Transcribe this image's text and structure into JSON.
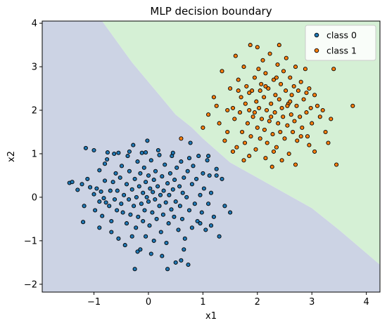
{
  "chart_data": {
    "type": "scatter",
    "title": "MLP decision boundary",
    "xlabel": "x1",
    "ylabel": "x2",
    "xlim": [
      -1.95,
      4.25
    ],
    "ylim": [
      -2.18,
      4.05
    ],
    "xticks": [
      -1,
      0,
      1,
      2,
      3,
      4
    ],
    "yticks": [
      -2,
      -1,
      0,
      1,
      2,
      3,
      4
    ],
    "grid": false,
    "legend_position": "top-right",
    "regions": [
      {
        "name": "class 0",
        "color": "#ccd3e4"
      },
      {
        "name": "class 1",
        "color": "#d5f0d5"
      }
    ],
    "decision_boundary": [
      [
        -0.85,
        4.05
      ],
      [
        -0.3,
        3.1
      ],
      [
        0.2,
        2.35
      ],
      [
        0.5,
        1.9
      ],
      [
        0.8,
        1.6
      ],
      [
        1.0,
        1.35
      ],
      [
        1.5,
        0.8
      ],
      [
        2.0,
        0.45
      ],
      [
        2.5,
        0.1
      ],
      [
        3.0,
        -0.25
      ],
      [
        3.5,
        -0.75
      ],
      [
        4.25,
        -1.55
      ]
    ],
    "series": [
      {
        "name": "class 0",
        "color": "#1f77b4",
        "points": [
          [
            -1.45,
            0.33
          ],
          [
            -1.4,
            0.35
          ],
          [
            -1.3,
            0.17
          ],
          [
            -1.22,
            0.3
          ],
          [
            -1.2,
            -0.57
          ],
          [
            -1.18,
            -0.2
          ],
          [
            -1.15,
            1.13
          ],
          [
            -1.12,
            0.42
          ],
          [
            -1.07,
            0.23
          ],
          [
            -1.0,
            0.07
          ],
          [
            -1.0,
            1.08
          ],
          [
            -0.98,
            -0.3
          ],
          [
            -0.95,
            0.2
          ],
          [
            -0.9,
            -0.1
          ],
          [
            -0.9,
            0.62
          ],
          [
            -0.87,
            0.13
          ],
          [
            -0.85,
            -0.43
          ],
          [
            -0.82,
            -0.02
          ],
          [
            -0.8,
            0.38
          ],
          [
            -0.8,
            0.77
          ],
          [
            -0.78,
            -0.12
          ],
          [
            -0.76,
            0.87
          ],
          [
            -0.72,
            -0.2
          ],
          [
            -0.7,
            0.15
          ],
          [
            -0.68,
            -0.55
          ],
          [
            -0.65,
            0.35
          ],
          [
            -0.63,
            1.0
          ],
          [
            -0.62,
            -0.05
          ],
          [
            -0.6,
            0.55
          ],
          [
            -0.58,
            -0.3
          ],
          [
            -0.57,
            0.15
          ],
          [
            -0.55,
            -0.95
          ],
          [
            -0.52,
            0.45
          ],
          [
            -0.5,
            -0.15
          ],
          [
            -0.49,
            0.72
          ],
          [
            -0.47,
            -0.35
          ],
          [
            -0.45,
            0.05
          ],
          [
            -0.43,
            -1.1
          ],
          [
            -0.4,
            0.3
          ],
          [
            -0.4,
            -0.6
          ],
          [
            -0.38,
            0.95
          ],
          [
            -0.36,
            -0.05
          ],
          [
            -0.35,
            0.6
          ],
          [
            -0.33,
            -0.4
          ],
          [
            -0.3,
            0.18
          ],
          [
            -0.3,
            -0.9
          ],
          [
            -0.28,
            1.2
          ],
          [
            -0.27,
            -0.2
          ],
          [
            -0.25,
            0.42
          ],
          [
            -0.23,
            -0.7
          ],
          [
            -0.22,
            0.0
          ],
          [
            -0.2,
            0.82
          ],
          [
            -0.19,
            -0.45
          ],
          [
            -0.17,
            0.25
          ],
          [
            -0.15,
            -1.2
          ],
          [
            -0.15,
            0.55
          ],
          [
            -0.13,
            -0.15
          ],
          [
            -0.12,
            1.02
          ],
          [
            -0.1,
            0.1
          ],
          [
            -0.1,
            -0.55
          ],
          [
            -0.08,
            0.68
          ],
          [
            -0.07,
            -0.3
          ],
          [
            -0.05,
            0.35
          ],
          [
            -0.05,
            -0.9
          ],
          [
            -0.03,
            0.0
          ],
          [
            -0.02,
            1.3
          ],
          [
            0.0,
            -0.1
          ],
          [
            0.0,
            0.5
          ],
          [
            0.02,
            -0.65
          ],
          [
            0.03,
            0.2
          ],
          [
            0.05,
            0.85
          ],
          [
            0.07,
            -0.35
          ],
          [
            0.08,
            0.12
          ],
          [
            0.1,
            -1.0
          ],
          [
            0.1,
            0.4
          ],
          [
            0.12,
            -0.05
          ],
          [
            0.13,
            0.6
          ],
          [
            0.15,
            -0.5
          ],
          [
            0.17,
            0.25
          ],
          [
            0.18,
            1.08
          ],
          [
            0.2,
            -0.2
          ],
          [
            0.22,
            0.05
          ],
          [
            0.23,
            -0.8
          ],
          [
            0.25,
            0.48
          ],
          [
            0.27,
            -0.4
          ],
          [
            0.28,
            0.15
          ],
          [
            0.3,
            0.75
          ],
          [
            0.32,
            -0.12
          ],
          [
            0.33,
            -1.05
          ],
          [
            0.35,
            0.32
          ],
          [
            0.37,
            -0.6
          ],
          [
            0.38,
            0.05
          ],
          [
            0.4,
            0.55
          ],
          [
            0.42,
            -0.28
          ],
          [
            0.43,
            0.95
          ],
          [
            0.45,
            0.18
          ],
          [
            0.47,
            -0.45
          ],
          [
            0.48,
            0.4
          ],
          [
            0.5,
            -0.1
          ],
          [
            0.5,
            -1.5
          ],
          [
            0.52,
            0.68
          ],
          [
            0.55,
            -0.75
          ],
          [
            0.57,
            0.25
          ],
          [
            0.58,
            -0.2
          ],
          [
            0.6,
            0.82
          ],
          [
            0.62,
            -0.5
          ],
          [
            0.63,
            0.1
          ],
          [
            0.65,
            0.45
          ],
          [
            0.67,
            -0.95
          ],
          [
            0.7,
            0.0
          ],
          [
            0.72,
            0.6
          ],
          [
            0.73,
            -1.55
          ],
          [
            0.75,
            -0.3
          ],
          [
            0.77,
            1.25
          ],
          [
            0.8,
            0.3
          ],
          [
            0.8,
            -0.7
          ],
          [
            0.82,
            0.72
          ],
          [
            0.85,
            -0.15
          ],
          [
            0.88,
            0.42
          ],
          [
            0.9,
            -0.55
          ],
          [
            0.92,
            0.95
          ],
          [
            0.95,
            0.05
          ],
          [
            0.98,
            -0.35
          ],
          [
            1.0,
            0.55
          ],
          [
            1.02,
            0.2
          ],
          [
            1.05,
            -0.75
          ],
          [
            1.08,
            0.85
          ],
          [
            1.1,
            -0.15
          ],
          [
            1.12,
            0.5
          ],
          [
            1.15,
            0.1
          ],
          [
            1.2,
            -0.45
          ],
          [
            1.25,
            0.65
          ],
          [
            1.3,
            -0.9
          ],
          [
            1.35,
            0.42
          ],
          [
            1.4,
            -0.2
          ],
          [
            1.5,
            -0.35
          ],
          [
            0.35,
            -1.65
          ],
          [
            -0.25,
            -1.65
          ],
          [
            0.6,
            -1.45
          ],
          [
            -0.75,
            1.03
          ],
          [
            -0.55,
            1.02
          ],
          [
            -0.35,
            1.05
          ],
          [
            -0.05,
            1.03
          ],
          [
            0.2,
            0.97
          ],
          [
            0.45,
            1.02
          ],
          [
            0.75,
            0.9
          ],
          [
            1.1,
            0.95
          ],
          [
            1.25,
            0.5
          ],
          [
            -0.9,
            -0.7
          ],
          [
            -0.68,
            -0.8
          ],
          [
            -0.2,
            -1.25
          ],
          [
            0.05,
            -1.3
          ],
          [
            0.25,
            -1.35
          ],
          [
            0.65,
            -1.2
          ],
          [
            0.95,
            -0.6
          ],
          [
            1.15,
            -0.65
          ]
        ]
      },
      {
        "name": "class 1",
        "color": "#ff7f0e",
        "points": [
          [
            0.6,
            1.35
          ],
          [
            1.0,
            1.6
          ],
          [
            1.1,
            1.9
          ],
          [
            1.2,
            2.3
          ],
          [
            1.25,
            2.1
          ],
          [
            1.3,
            1.7
          ],
          [
            1.35,
            2.9
          ],
          [
            1.4,
            1.3
          ],
          [
            1.45,
            1.5
          ],
          [
            1.5,
            2.5
          ],
          [
            1.55,
            2.05
          ],
          [
            1.58,
            1.8
          ],
          [
            1.6,
            3.25
          ],
          [
            1.62,
            1.15
          ],
          [
            1.65,
            2.7
          ],
          [
            1.68,
            1.95
          ],
          [
            1.7,
            2.3
          ],
          [
            1.72,
            1.5
          ],
          [
            1.75,
            3.0
          ],
          [
            1.77,
            1.25
          ],
          [
            1.78,
            2.15
          ],
          [
            1.8,
            2.55
          ],
          [
            1.82,
            1.7
          ],
          [
            1.85,
            2.0
          ],
          [
            1.87,
            3.5
          ],
          [
            1.88,
            1.4
          ],
          [
            1.9,
            2.45
          ],
          [
            1.92,
            1.85
          ],
          [
            1.95,
            2.75
          ],
          [
            1.97,
            1.1
          ],
          [
            1.98,
            2.2
          ],
          [
            2.0,
            1.6
          ],
          [
            2.02,
            2.95
          ],
          [
            2.03,
            2.05
          ],
          [
            2.05,
            1.35
          ],
          [
            2.07,
            2.6
          ],
          [
            2.08,
            1.8
          ],
          [
            2.1,
            3.15
          ],
          [
            2.12,
            2.3
          ],
          [
            2.13,
            1.55
          ],
          [
            2.15,
            2.85
          ],
          [
            2.17,
            2.0
          ],
          [
            2.18,
            1.25
          ],
          [
            2.2,
            2.5
          ],
          [
            2.22,
            1.75
          ],
          [
            2.23,
            3.3
          ],
          [
            2.25,
            2.15
          ],
          [
            2.27,
            0.7
          ],
          [
            2.28,
            1.45
          ],
          [
            2.3,
            2.7
          ],
          [
            2.32,
            1.95
          ],
          [
            2.33,
            2.35
          ],
          [
            2.35,
            1.15
          ],
          [
            2.37,
            3.05
          ],
          [
            2.38,
            1.7
          ],
          [
            2.4,
            2.25
          ],
          [
            2.42,
            1.5
          ],
          [
            2.43,
            2.6
          ],
          [
            2.45,
            2.05
          ],
          [
            2.47,
            1.85
          ],
          [
            2.48,
            2.9
          ],
          [
            2.5,
            1.35
          ],
          [
            2.52,
            2.45
          ],
          [
            2.53,
            3.2
          ],
          [
            2.55,
            1.65
          ],
          [
            2.57,
            2.15
          ],
          [
            2.58,
            1.0
          ],
          [
            2.6,
            2.75
          ],
          [
            2.62,
            1.9
          ],
          [
            2.63,
            2.35
          ],
          [
            2.65,
            1.5
          ],
          [
            2.67,
            2.55
          ],
          [
            2.68,
            1.75
          ],
          [
            2.7,
            3.0
          ],
          [
            2.72,
            2.1
          ],
          [
            2.73,
            1.3
          ],
          [
            2.75,
            2.45
          ],
          [
            2.78,
            1.85
          ],
          [
            2.8,
            2.65
          ],
          [
            2.82,
            1.6
          ],
          [
            2.85,
            2.25
          ],
          [
            2.88,
            2.95
          ],
          [
            2.9,
            1.95
          ],
          [
            2.92,
            1.4
          ],
          [
            2.95,
            2.5
          ],
          [
            2.98,
            2.05
          ],
          [
            3.0,
            1.7
          ],
          [
            3.05,
            2.35
          ],
          [
            3.1,
            2.1
          ],
          [
            3.15,
            1.85
          ],
          [
            3.2,
            2.0
          ],
          [
            3.25,
            1.5
          ],
          [
            3.3,
            1.25
          ],
          [
            3.4,
            2.95
          ],
          [
            3.45,
            0.75
          ],
          [
            3.75,
            2.1
          ],
          [
            2.0,
            3.45
          ],
          [
            2.4,
            3.5
          ],
          [
            2.15,
            0.9
          ],
          [
            1.85,
            0.95
          ],
          [
            2.45,
            0.85
          ],
          [
            2.7,
            0.75
          ],
          [
            2.95,
            1.2
          ],
          [
            3.05,
            1.05
          ],
          [
            1.55,
            1.05
          ],
          [
            1.75,
            0.85
          ],
          [
            2.3,
            1.05
          ],
          [
            2.55,
            2.1
          ],
          [
            2.05,
            2.45
          ],
          [
            1.95,
            1.95
          ],
          [
            2.25,
            1.85
          ],
          [
            2.6,
            2.2
          ],
          [
            1.85,
            2.4
          ],
          [
            2.35,
            2.75
          ],
          [
            2.15,
            2.55
          ],
          [
            1.65,
            2.45
          ],
          [
            2.8,
            1.4
          ],
          [
            3.35,
            1.8
          ],
          [
            1.45,
            2.0
          ],
          [
            2.9,
            2.4
          ]
        ]
      }
    ]
  }
}
